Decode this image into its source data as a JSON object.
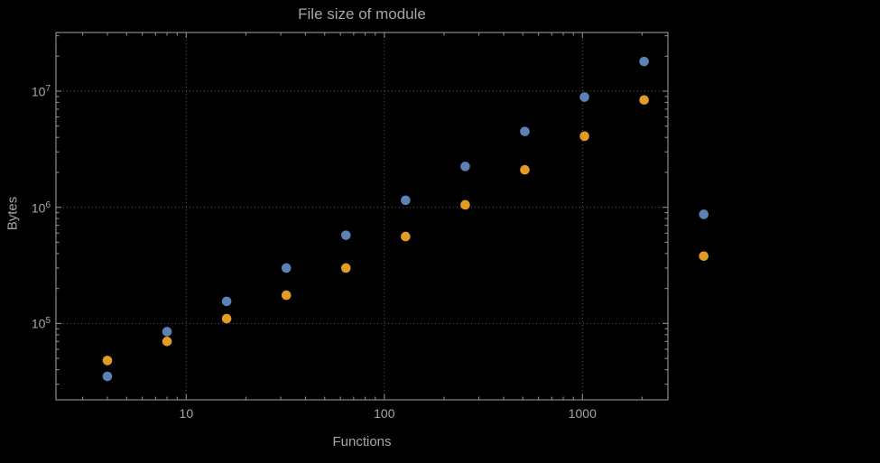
{
  "colors": {
    "background": "#000000",
    "frame": "#8a8a8a",
    "grid": "#5f5f5f",
    "text": "#a6a6a6",
    "blue_series": "#5e81b5",
    "orange_series": "#e19c24"
  },
  "chart_data": {
    "type": "scatter",
    "title": "File size of module",
    "xlabel": "Functions",
    "ylabel": "Bytes",
    "x_scale": "log",
    "y_scale": "log",
    "grid": "major-dotted",
    "legend": "none",
    "xlim": [
      2.2,
      2700
    ],
    "ylim": [
      22000,
      32000000
    ],
    "x_ticks": [
      "10",
      "100",
      "1000"
    ],
    "x_tick_values": [
      10,
      100,
      1000
    ],
    "y_tick_exponents": [
      5,
      6,
      7
    ],
    "x": [
      4,
      8,
      16,
      32,
      64,
      128,
      256,
      512,
      1024,
      2048,
      4096
    ],
    "series": [
      {
        "name": "blue",
        "color": "#5e81b5",
        "values": [
          35000,
          85000,
          155000,
          300000,
          575000,
          1150000,
          2250000,
          4500000,
          8900000,
          18000000,
          870000
        ]
      },
      {
        "name": "orange",
        "color": "#e19c24",
        "values": [
          48000,
          70000,
          110000,
          175000,
          300000,
          560000,
          1050000,
          2100000,
          4100000,
          8400000,
          380000
        ]
      }
    ]
  }
}
